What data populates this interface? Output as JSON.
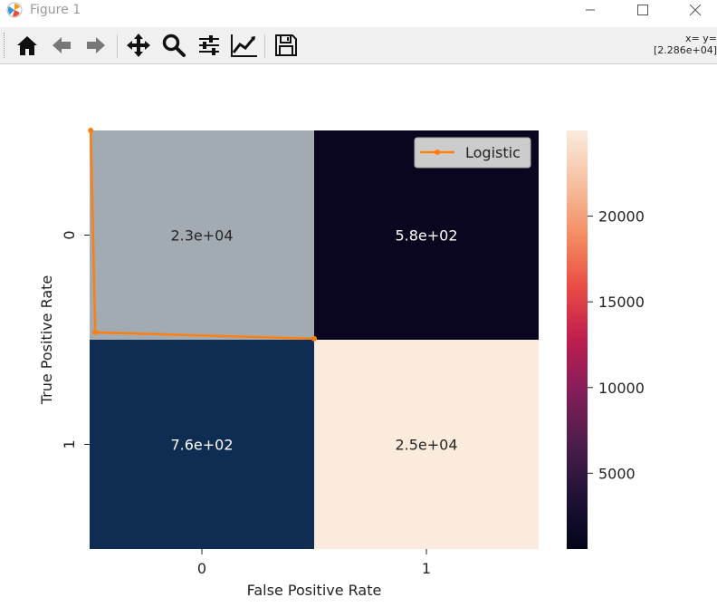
{
  "window": {
    "title": "Figure 1",
    "controls": [
      "minimize",
      "maximize",
      "close"
    ]
  },
  "toolbar": {
    "buttons": [
      {
        "name": "home-icon",
        "tooltip": "Home"
      },
      {
        "name": "back-arrow-icon",
        "tooltip": "Back"
      },
      {
        "name": "forward-arrow-icon",
        "tooltip": "Forward"
      },
      {
        "name": "pan-icon",
        "tooltip": "Pan"
      },
      {
        "name": "zoom-icon",
        "tooltip": "Zoom"
      },
      {
        "name": "subplots-icon",
        "tooltip": "Configure subplots"
      },
      {
        "name": "edit-axis-icon",
        "tooltip": "Edit axis"
      },
      {
        "name": "save-icon",
        "tooltip": "Save"
      }
    ],
    "coords_line1": "x= y=",
    "coords_line2": "[2.286e+04]"
  },
  "chart_data": {
    "type": "heatmap",
    "xlabel": "False Positive Rate",
    "ylabel": "True Positive Rate",
    "x_ticks": [
      "0",
      "1"
    ],
    "y_ticks": [
      "0",
      "1"
    ],
    "cells": [
      {
        "row": 0,
        "col": 0,
        "value": 22860,
        "label": "2.3e+04",
        "color": "#a2aab2"
      },
      {
        "row": 0,
        "col": 1,
        "value": 580,
        "label": "5.8e+02",
        "color": "#0b0620"
      },
      {
        "row": 1,
        "col": 0,
        "value": 760,
        "label": "7.6e+02",
        "color": "#0f2c52"
      },
      {
        "row": 1,
        "col": 1,
        "value": 25000,
        "label": "2.5e+04",
        "color": "#faebdd"
      }
    ],
    "colorbar": {
      "min": 580,
      "max": 25000,
      "ticks": [
        5000,
        10000,
        15000,
        20000
      ],
      "tick_labels": [
        "5000",
        "10000",
        "15000",
        "20000"
      ],
      "colormap": "rocket"
    },
    "line_series": [
      {
        "name": "Logistic",
        "color": "#ff7f0e",
        "x": [
          0.005,
          0.025,
          1.0
        ],
        "y": [
          0.0,
          0.965,
          0.995
        ]
      }
    ],
    "legend_position": "top-right"
  }
}
